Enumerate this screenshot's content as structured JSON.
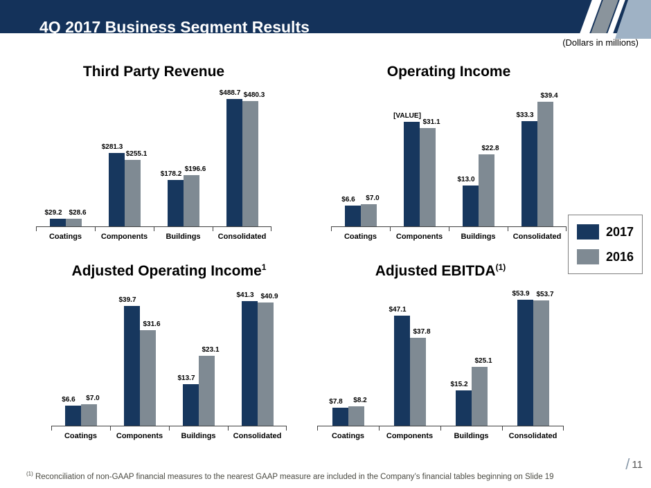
{
  "slide": {
    "title": "4Q 2017 Business Segment Results",
    "units_note": "(Dollars in millions)",
    "footnote_sup": "(1)",
    "footnote": "Reconciliation of non-GAAP financial measures to the nearest GAAP measure are included in the Company’s financial tables beginning on Slide 19",
    "page_number": "11"
  },
  "legend": {
    "items": [
      {
        "label": "2017",
        "color": "#17375E"
      },
      {
        "label": "2016",
        "color": "#7F8A93"
      }
    ]
  },
  "chart_data": [
    {
      "type": "bar",
      "title": "Third Party Revenue",
      "title_sup": "",
      "categories": [
        "Coatings",
        "Components",
        "Buildings",
        "Consolidated"
      ],
      "series": [
        {
          "name": "2017",
          "values": [
            29.2,
            281.3,
            178.2,
            488.7
          ],
          "labels": [
            "$29.2",
            "$281.3",
            "$178.2",
            "$488.7"
          ]
        },
        {
          "name": "2016",
          "values": [
            28.6,
            255.1,
            196.6,
            480.3
          ],
          "labels": [
            "$28.6",
            "$255.1",
            "$196.6",
            "$480.3"
          ]
        }
      ],
      "ymax": 510,
      "legend_position": "right",
      "grid": false
    },
    {
      "type": "bar",
      "title": "Operating Income",
      "title_sup": "",
      "categories": [
        "Coatings",
        "Components",
        "Buildings",
        "Consolidated"
      ],
      "series": [
        {
          "name": "2017",
          "values": [
            6.6,
            33.0,
            13.0,
            33.3
          ],
          "labels": [
            "$6.6",
            "[VALUE]",
            "$13.0",
            "$33.3"
          ]
        },
        {
          "name": "2016",
          "values": [
            7.0,
            31.1,
            22.8,
            39.4
          ],
          "labels": [
            "$7.0",
            "$31.1",
            "$22.8",
            "$39.4"
          ]
        }
      ],
      "ymax": 42,
      "legend_position": "right",
      "grid": false
    },
    {
      "type": "bar",
      "title": "Adjusted Operating Income",
      "title_sup": "1",
      "categories": [
        "Coatings",
        "Components",
        "Buildings",
        "Consolidated"
      ],
      "series": [
        {
          "name": "2017",
          "values": [
            6.6,
            39.7,
            13.7,
            41.3
          ],
          "labels": [
            "$6.6",
            "$39.7",
            "$13.7",
            "$41.3"
          ]
        },
        {
          "name": "2016",
          "values": [
            7.0,
            31.6,
            23.1,
            40.9
          ],
          "labels": [
            "$7.0",
            "$31.6",
            "$23.1",
            "$40.9"
          ]
        }
      ],
      "ymax": 44,
      "legend_position": "right",
      "grid": false
    },
    {
      "type": "bar",
      "title": "Adjusted EBITDA",
      "title_sup": "(1)",
      "categories": [
        "Coatings",
        "Components",
        "Buildings",
        "Consolidated"
      ],
      "series": [
        {
          "name": "2017",
          "values": [
            7.8,
            47.1,
            15.2,
            53.9
          ],
          "labels": [
            "$7.8",
            "$47.1",
            "$15.2",
            "$53.9"
          ]
        },
        {
          "name": "2016",
          "values": [
            8.2,
            37.8,
            25.1,
            53.7
          ],
          "labels": [
            "$8.2",
            "$37.8",
            "$25.1",
            "$53.7"
          ]
        }
      ],
      "ymax": 57,
      "legend_position": "right",
      "grid": false
    }
  ]
}
